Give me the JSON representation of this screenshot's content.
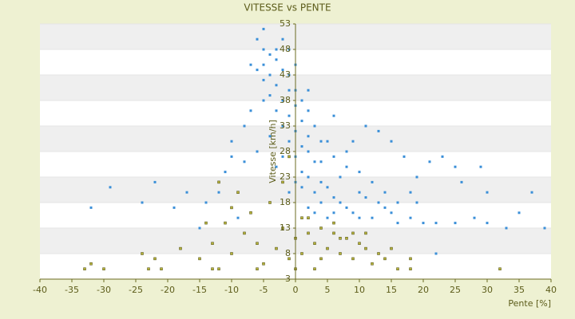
{
  "chart_data": {
    "type": "scatter",
    "title": "VITESSE vs PENTE",
    "x_label": "Pente [%]",
    "y_label": "Vitesse [km/h]",
    "xlim": [
      -40,
      40
    ],
    "xticks": [
      -40,
      -35,
      -30,
      -25,
      -20,
      -15,
      -10,
      -5,
      0,
      5,
      10,
      15,
      20,
      25,
      30,
      35,
      40
    ],
    "ylim": [
      3,
      53
    ],
    "yticks": [
      3,
      8,
      13,
      18,
      23,
      28,
      33,
      38,
      43,
      48,
      53
    ],
    "grid": true,
    "series": [
      {
        "color": "#3a8fd8",
        "x": [
          -6,
          -5,
          -4,
          -5,
          -6,
          -3,
          -4,
          -2,
          -3,
          -5,
          -1,
          -2,
          -4,
          -3,
          -1,
          0,
          -2,
          0,
          1,
          -1,
          1,
          0,
          2,
          -2,
          3,
          1,
          2,
          4,
          3,
          5,
          6,
          4,
          7,
          8,
          6,
          9,
          10,
          5,
          2,
          -1,
          0,
          -3,
          -6,
          -8,
          -11,
          -10,
          -8,
          -12,
          -14,
          -17,
          -22,
          -32,
          -29,
          -24,
          -19,
          -15,
          -9,
          -4,
          -5,
          -7,
          -5,
          -2,
          -1,
          0,
          2,
          3,
          4,
          6,
          8,
          7,
          10,
          12,
          11,
          13,
          14,
          12,
          15,
          16,
          18,
          20,
          22,
          25,
          28,
          30,
          33,
          39,
          37,
          30,
          25,
          19,
          18,
          17,
          21,
          23,
          15,
          13,
          11,
          9,
          6,
          5,
          2,
          4,
          1,
          3,
          22,
          -10,
          -7,
          -3,
          -1,
          0,
          1,
          2,
          8,
          10,
          14,
          16,
          19,
          35,
          29,
          26
        ],
        "values": [
          50,
          48,
          47,
          45,
          44,
          46,
          43,
          44,
          41,
          42,
          40,
          38,
          39,
          36,
          35,
          37,
          33,
          32,
          34,
          30,
          29,
          27,
          28,
          27,
          26,
          24,
          23,
          22,
          20,
          21,
          19,
          18,
          18,
          17,
          16,
          16,
          15,
          15,
          17,
          20,
          22,
          25,
          28,
          26,
          24,
          30,
          33,
          20,
          18,
          20,
          22,
          17,
          21,
          18,
          17,
          13,
          15,
          31,
          38,
          45,
          52,
          50,
          48,
          45,
          40,
          33,
          30,
          27,
          25,
          23,
          24,
          22,
          19,
          18,
          17,
          15,
          16,
          14,
          15,
          14,
          14,
          14,
          15,
          14,
          13,
          13,
          20,
          20,
          25,
          23,
          20,
          27,
          26,
          27,
          30,
          32,
          33,
          30,
          35,
          30,
          31,
          26,
          21,
          16,
          8,
          27,
          36,
          48,
          43,
          40,
          38,
          36,
          28,
          20,
          20,
          18,
          18,
          16,
          25,
          22
        ]
      },
      {
        "color": "#b5b23a",
        "x": [
          -33,
          -32,
          -30,
          -23,
          -24,
          -22,
          -21,
          -18,
          -15,
          -13,
          -12,
          -10,
          -8,
          -6,
          -5,
          -3,
          -2,
          -1,
          0,
          0,
          1,
          2,
          3,
          4,
          5,
          6,
          7,
          8,
          9,
          10,
          11,
          12,
          13,
          14,
          16,
          18,
          18,
          32,
          -9,
          -10,
          -11,
          -14,
          -7,
          -4,
          -12,
          -13,
          -6,
          4,
          7,
          3,
          1,
          -2,
          -1,
          2,
          6,
          9,
          11,
          15
        ],
        "values": [
          5,
          6,
          5,
          5,
          8,
          7,
          5,
          9,
          7,
          10,
          5,
          8,
          12,
          10,
          6,
          9,
          13,
          7,
          11,
          5,
          15,
          12,
          10,
          13,
          9,
          12,
          8,
          11,
          7,
          10,
          9,
          6,
          8,
          7,
          5,
          7,
          5,
          5,
          20,
          17,
          14,
          14,
          16,
          18,
          22,
          5,
          5,
          7,
          11,
          5,
          8,
          22,
          27,
          15,
          14,
          12,
          12,
          9
        ]
      }
    ]
  }
}
